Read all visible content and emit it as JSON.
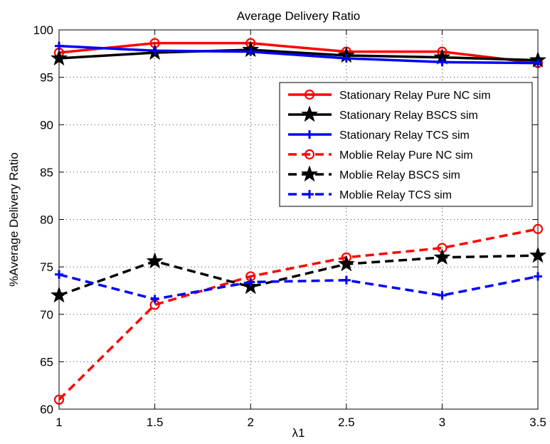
{
  "chart_data": {
    "type": "line",
    "title": "Average Delivery Ratio",
    "xlabel": "λ1",
    "ylabel": "%Average Delivery Ratio",
    "xlim": [
      1,
      3.5
    ],
    "ylim": [
      60,
      100
    ],
    "xticks": [
      "1",
      "1.5",
      "2",
      "2.5",
      "3",
      "3.5"
    ],
    "yticks": [
      "60",
      "65",
      "70",
      "75",
      "80",
      "85",
      "90",
      "95",
      "100"
    ],
    "grid": true,
    "legend_position": "upper-right",
    "x": [
      1,
      1.5,
      2,
      2.5,
      3,
      3.5
    ],
    "series": [
      {
        "name": "Stationary Relay Pure NC sim",
        "values": [
          97.6,
          98.6,
          98.6,
          97.7,
          97.7,
          96.5
        ],
        "color": "#ff0000",
        "style": "solid",
        "marker": "circle"
      },
      {
        "name": "Stationary Relay BSCS sim",
        "values": [
          97.0,
          97.6,
          97.9,
          97.3,
          97.1,
          96.8
        ],
        "color": "#000000",
        "style": "solid",
        "marker": "star"
      },
      {
        "name": "Stationary Relay TCS sim",
        "values": [
          98.3,
          97.8,
          97.7,
          97.0,
          96.6,
          96.5
        ],
        "color": "#0000ff",
        "style": "solid",
        "marker": "plus"
      },
      {
        "name": "Moblie Relay Pure NC sim",
        "values": [
          61.0,
          71.0,
          74.0,
          76.0,
          77.0,
          79.0
        ],
        "color": "#ff0000",
        "style": "dashed",
        "marker": "circle"
      },
      {
        "name": "Moblie Relay BSCS sim",
        "values": [
          72.0,
          75.6,
          72.9,
          75.3,
          76.0,
          76.2
        ],
        "color": "#000000",
        "style": "dashed",
        "marker": "star"
      },
      {
        "name": "Moblie Relay TCS sim",
        "values": [
          74.2,
          71.6,
          73.4,
          73.6,
          72.0,
          74.0
        ],
        "color": "#0000ff",
        "style": "dashed",
        "marker": "plus"
      }
    ]
  }
}
